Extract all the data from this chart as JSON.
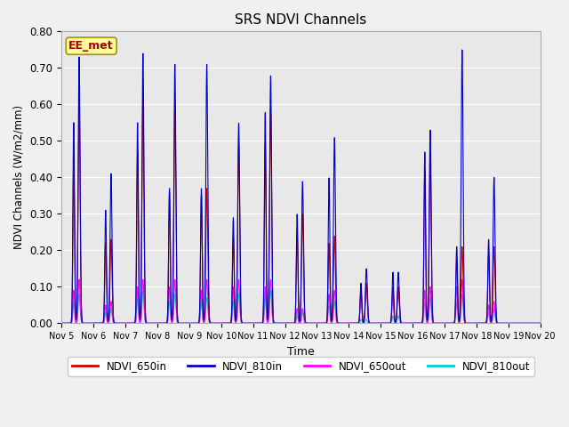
{
  "title": "SRS NDVI Channels",
  "xlabel": "Time",
  "ylabel": "NDVI Channels (W/m2/mm)",
  "xlim": [
    5.0,
    20.0
  ],
  "ylim": [
    0.0,
    0.8
  ],
  "yticks": [
    0.0,
    0.1,
    0.2,
    0.3,
    0.4,
    0.5,
    0.6,
    0.7,
    0.8
  ],
  "xtick_positions": [
    5,
    6,
    7,
    8,
    9,
    10,
    11,
    12,
    13,
    14,
    15,
    16,
    17,
    18,
    19,
    20
  ],
  "xtick_labels": [
    "Nov 5",
    "Nov 6",
    "Nov 7",
    "Nov 8",
    "Nov 9",
    "Nov 10",
    "Nov 11",
    "Nov 12",
    "Nov 13",
    "Nov 14",
    "Nov 15",
    "Nov 16",
    "Nov 17",
    "Nov 18",
    "Nov 19",
    "Nov 20"
  ],
  "background_color": "#e8e8e8",
  "fig_background": "#f0f0f0",
  "line_colors": {
    "NDVI_650in": "#cc0000",
    "NDVI_810in": "#0000cc",
    "NDVI_650out": "#ff00ff",
    "NDVI_810out": "#00cccc"
  },
  "ee_met_label": "EE_met",
  "ee_met_color": "#aa0000",
  "ee_met_bg": "#ffff99",
  "peak_days": [
    5,
    6,
    7,
    8,
    9,
    10,
    11,
    12,
    13,
    14,
    15,
    16,
    17,
    18,
    19
  ],
  "peaks_810in": [
    0.73,
    0.41,
    0.74,
    0.71,
    0.71,
    0.55,
    0.68,
    0.39,
    0.51,
    0.15,
    0.14,
    0.53,
    0.75,
    0.4,
    0.0
  ],
  "peaks2_810in": [
    0.55,
    0.31,
    0.55,
    0.37,
    0.37,
    0.29,
    0.58,
    0.3,
    0.4,
    0.11,
    0.14,
    0.47,
    0.21,
    0.23,
    0.0
  ],
  "peaks_650in": [
    0.62,
    0.23,
    0.62,
    0.6,
    0.37,
    0.49,
    0.59,
    0.3,
    0.24,
    0.11,
    0.1,
    0.47,
    0.21,
    0.21,
    0.0
  ],
  "peaks2_650in": [
    0.44,
    0.22,
    0.47,
    0.36,
    0.35,
    0.24,
    0.49,
    0.25,
    0.22,
    0.1,
    0.1,
    0.42,
    0.18,
    0.19,
    0.0
  ],
  "peaks_650out": [
    0.12,
    0.06,
    0.12,
    0.12,
    0.12,
    0.12,
    0.12,
    0.04,
    0.09,
    0.11,
    0.1,
    0.1,
    0.12,
    0.06,
    0.0
  ],
  "peaks2_650out": [
    0.09,
    0.05,
    0.1,
    0.1,
    0.09,
    0.1,
    0.1,
    0.04,
    0.08,
    0.09,
    0.09,
    0.09,
    0.1,
    0.05,
    0.0
  ],
  "peaks_810out": [
    0.08,
    0.04,
    0.09,
    0.08,
    0.07,
    0.08,
    0.09,
    0.03,
    0.06,
    0.01,
    0.02,
    0.07,
    0.08,
    0.04,
    0.0
  ],
  "peaks2_810out": [
    0.06,
    0.03,
    0.07,
    0.06,
    0.06,
    0.06,
    0.07,
    0.02,
    0.05,
    0.01,
    0.02,
    0.06,
    0.06,
    0.03,
    0.0
  ]
}
